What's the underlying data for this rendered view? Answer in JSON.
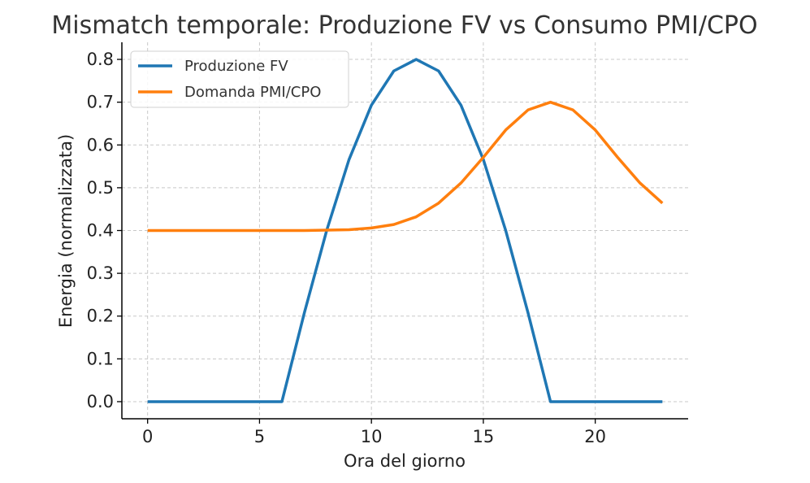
{
  "chart_data": {
    "type": "line",
    "title": "Mismatch temporale: Produzione FV vs Consumo PMI/CPO",
    "xlabel": "Ora del giorno",
    "ylabel": "Energia (normalizzata)",
    "xlim": [
      -1.15,
      24.15
    ],
    "ylim": [
      -0.04,
      0.84
    ],
    "xticks": [
      0,
      5,
      10,
      15,
      20
    ],
    "yticks": [
      0.0,
      0.1,
      0.2,
      0.3,
      0.4,
      0.5,
      0.6,
      0.7,
      0.8
    ],
    "xtick_labels": [
      "0",
      "5",
      "10",
      "15",
      "20"
    ],
    "ytick_labels": [
      "0.0",
      "0.1",
      "0.2",
      "0.3",
      "0.4",
      "0.5",
      "0.6",
      "0.7",
      "0.8"
    ],
    "grid": true,
    "legend_position": "top-left",
    "x": [
      0,
      1,
      2,
      3,
      4,
      5,
      6,
      7,
      8,
      9,
      10,
      11,
      12,
      13,
      14,
      15,
      16,
      17,
      18,
      19,
      20,
      21,
      22,
      23
    ],
    "series": [
      {
        "name": "Produzione FV",
        "color": "#1f77b4",
        "values": [
          0,
          0,
          0,
          0,
          0,
          0,
          0,
          0.207,
          0.4,
          0.566,
          0.693,
          0.773,
          0.8,
          0.773,
          0.693,
          0.566,
          0.4,
          0.207,
          0,
          0,
          0,
          0,
          0,
          0
        ]
      },
      {
        "name": "Domanda PMI/CPO",
        "color": "#ff7f0e",
        "values": [
          0.4,
          0.4,
          0.4,
          0.4,
          0.4,
          0.4,
          0.4,
          0.4,
          0.401,
          0.402,
          0.406,
          0.414,
          0.432,
          0.464,
          0.511,
          0.571,
          0.635,
          0.682,
          0.7,
          0.682,
          0.635,
          0.571,
          0.511,
          0.464
        ]
      }
    ]
  }
}
